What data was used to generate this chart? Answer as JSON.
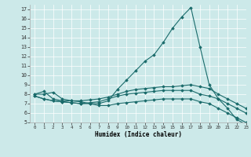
{
  "xlabel": "Humidex (Indice chaleur)",
  "background_color": "#cce9e9",
  "line_color": "#1a6b6b",
  "xlim": [
    -0.5,
    23
  ],
  "ylim": [
    5,
    17.5
  ],
  "xticks": [
    0,
    1,
    2,
    3,
    4,
    5,
    6,
    7,
    8,
    9,
    10,
    11,
    12,
    13,
    14,
    15,
    16,
    17,
    18,
    19,
    20,
    21,
    22,
    23
  ],
  "yticks": [
    5,
    6,
    7,
    8,
    9,
    10,
    11,
    12,
    13,
    14,
    15,
    16,
    17
  ],
  "series": [
    {
      "x": [
        0,
        1,
        2,
        3,
        4,
        5,
        6,
        7,
        8,
        9,
        10,
        11,
        12,
        13,
        14,
        15,
        16,
        17,
        18,
        19,
        20,
        21,
        22,
        23
      ],
      "y": [
        8.0,
        8.3,
        7.5,
        7.3,
        7.3,
        7.2,
        7.0,
        7.0,
        7.3,
        8.5,
        9.5,
        10.5,
        11.5,
        12.2,
        13.5,
        15.0,
        16.2,
        17.2,
        13.0,
        9.0,
        7.5,
        6.5,
        5.3,
        4.8
      ]
    },
    {
      "x": [
        0,
        1,
        2,
        3,
        4,
        5,
        6,
        7,
        8,
        9,
        10,
        11,
        12,
        13,
        14,
        15,
        16,
        17,
        18,
        19,
        20,
        21,
        22,
        23
      ],
      "y": [
        8.0,
        8.0,
        8.2,
        7.5,
        7.3,
        7.3,
        7.4,
        7.5,
        7.7,
        8.0,
        8.3,
        8.5,
        8.6,
        8.7,
        8.8,
        8.8,
        8.9,
        9.0,
        8.8,
        8.6,
        8.0,
        7.5,
        7.0,
        6.5
      ]
    },
    {
      "x": [
        0,
        1,
        2,
        3,
        4,
        5,
        6,
        7,
        8,
        9,
        10,
        11,
        12,
        13,
        14,
        15,
        16,
        17,
        18,
        19,
        20,
        21,
        22,
        23
      ],
      "y": [
        7.8,
        7.5,
        7.3,
        7.2,
        7.1,
        7.0,
        7.0,
        6.8,
        6.8,
        7.0,
        7.1,
        7.2,
        7.3,
        7.4,
        7.5,
        7.5,
        7.5,
        7.5,
        7.2,
        7.0,
        6.5,
        6.0,
        5.5,
        5.0
      ]
    },
    {
      "x": [
        0,
        1,
        2,
        3,
        4,
        5,
        6,
        7,
        8,
        9,
        10,
        11,
        12,
        13,
        14,
        15,
        16,
        17,
        18,
        19,
        20,
        21,
        22,
        23
      ],
      "y": [
        7.8,
        7.5,
        7.3,
        7.2,
        7.1,
        7.0,
        7.1,
        7.2,
        7.5,
        7.8,
        8.0,
        8.1,
        8.2,
        8.3,
        8.4,
        8.4,
        8.4,
        8.4,
        8.0,
        7.8,
        7.5,
        7.0,
        6.5,
        6.0
      ]
    }
  ]
}
